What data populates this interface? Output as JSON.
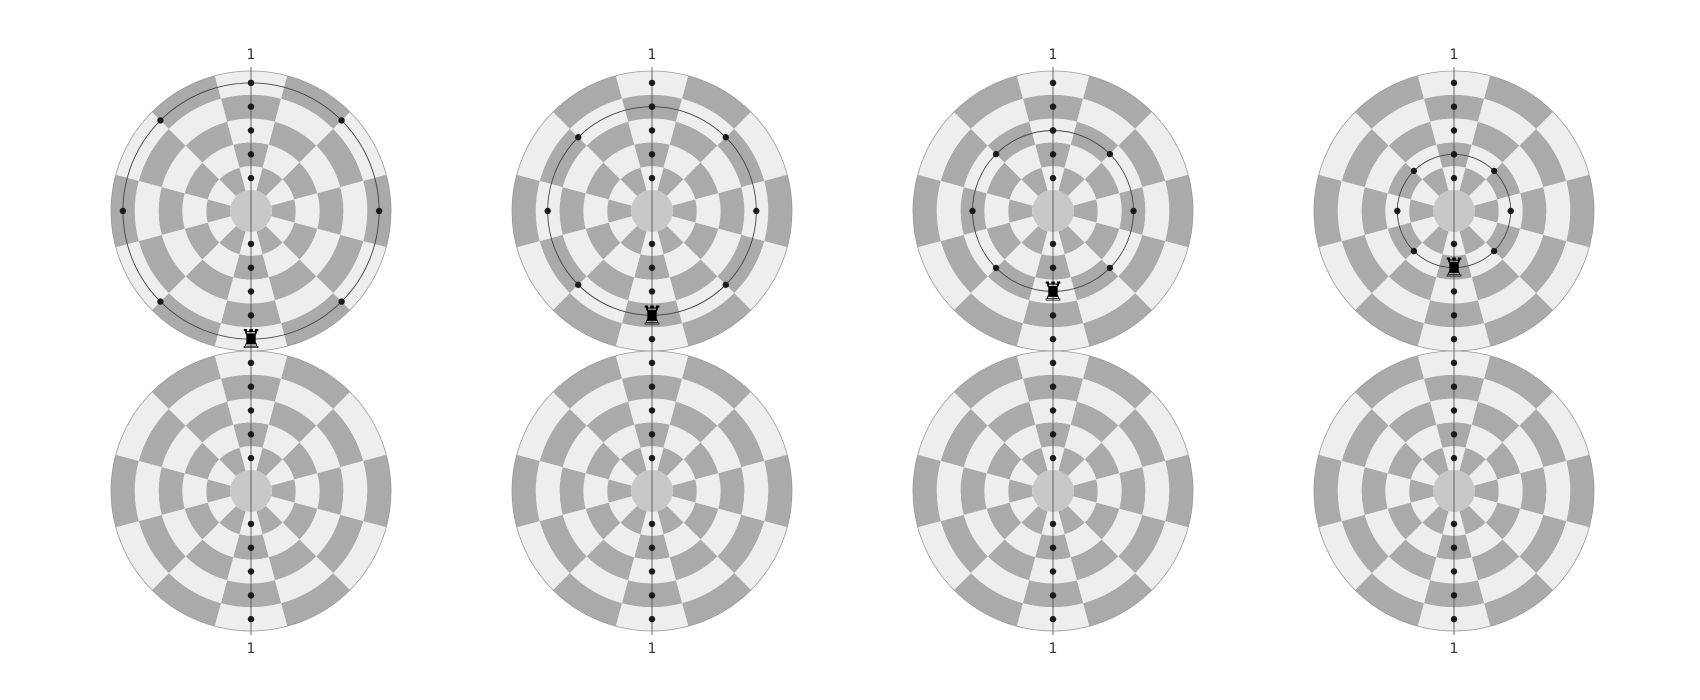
{
  "colors": {
    "background": "#ffffff",
    "light_square": "#eeeeee",
    "dark_square": "#aaaaaa",
    "center": "#c8c8c8",
    "board_outline": "#999999",
    "line": "#444444",
    "dot": "#1a1a1a",
    "piece": "#000000"
  },
  "board": {
    "rings": 5,
    "sectors": 12,
    "piece": "rook",
    "piece_icon": "black-rook-icon",
    "piece_glyph": "♜"
  },
  "diagrams": [
    {
      "top_label": "1",
      "bottom_label": "1",
      "orbit_ring": 5,
      "rook_ring": 5,
      "top_file_dots_rings": [
        1,
        2,
        3,
        4,
        5
      ],
      "bottom_file_dots_rings": [
        1,
        2,
        3,
        4,
        5
      ]
    },
    {
      "top_label": "1",
      "bottom_label": "1",
      "orbit_ring": 4,
      "rook_ring": 4,
      "top_file_dots_rings": [
        1,
        2,
        3,
        4,
        5
      ],
      "bottom_file_dots_rings": [
        1,
        2,
        3,
        4,
        5
      ]
    },
    {
      "top_label": "1",
      "bottom_label": "1",
      "orbit_ring": 3,
      "rook_ring": 3,
      "top_file_dots_rings": [
        1,
        2,
        3,
        4,
        5
      ],
      "bottom_file_dots_rings": [
        1,
        2,
        3,
        4,
        5
      ]
    },
    {
      "top_label": "1",
      "bottom_label": "1",
      "orbit_ring": 2,
      "rook_ring": 2,
      "top_file_dots_rings": [
        1,
        2,
        3,
        4,
        5
      ],
      "bottom_file_dots_rings": [
        1,
        2,
        3,
        4,
        5
      ]
    }
  ]
}
